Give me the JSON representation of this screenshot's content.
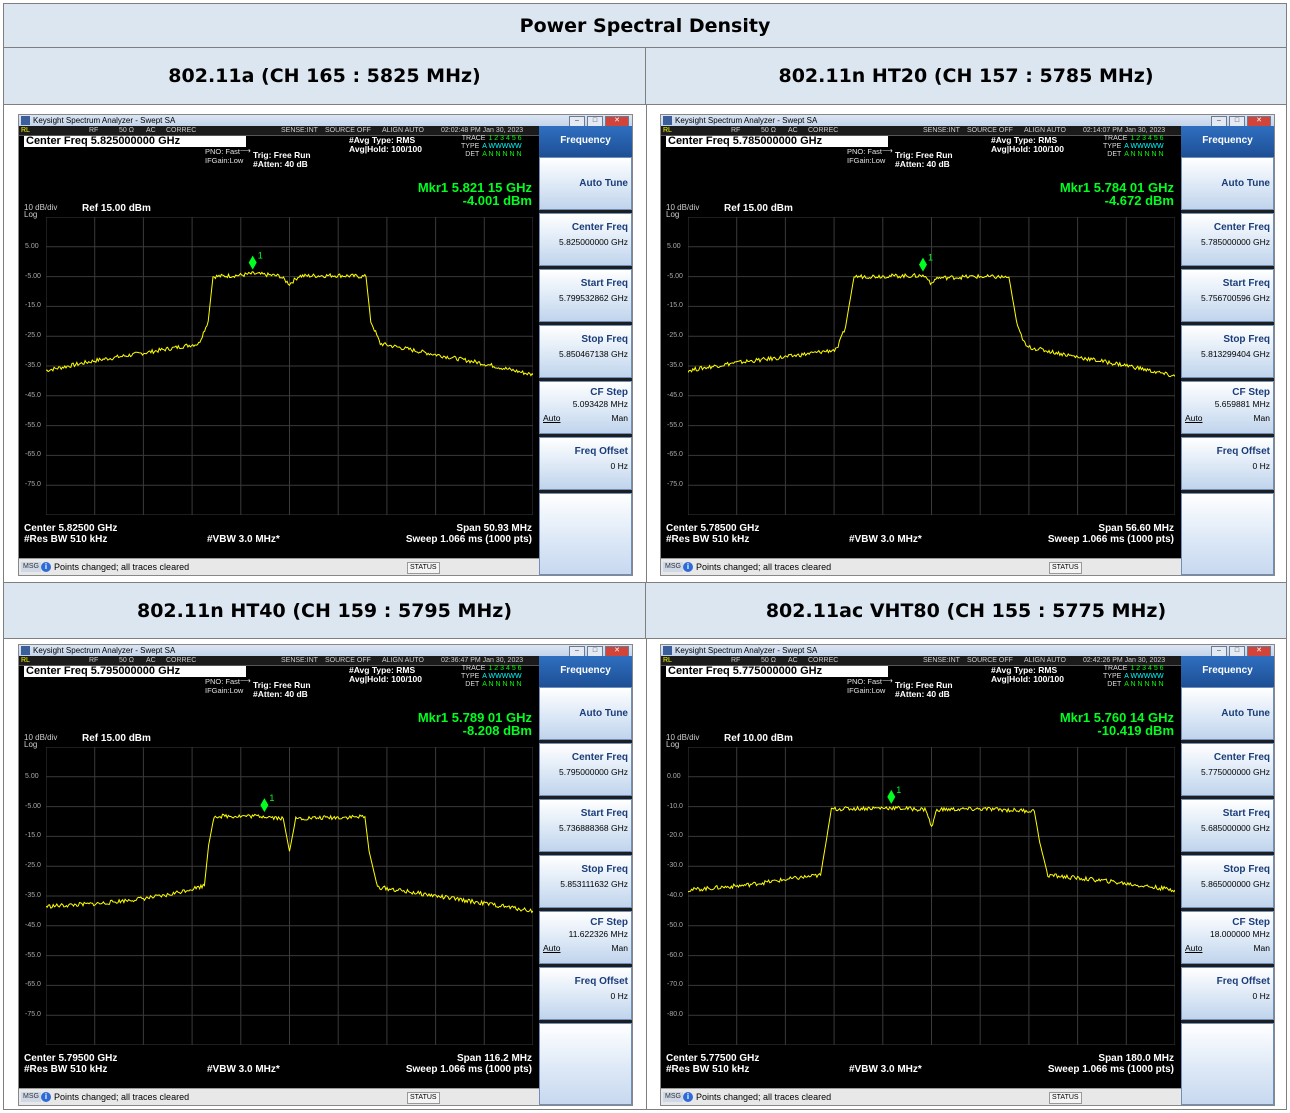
{
  "header": "Power Spectral Density",
  "panels": [
    {
      "heading": "802.11a (CH 165 : 5825 MHz)",
      "window_title": "Keysight Spectrum Analyzer - Swept SA",
      "status": {
        "rl": "RL",
        "rf": "RF",
        "ohm": "50 Ω",
        "ac": "AC",
        "correc": "CORREC",
        "sense": "SENSE:INT",
        "source": "SOURCE OFF",
        "align": "ALIGN AUTO",
        "time": "02:02:48 PM Jan 30, 2023"
      },
      "center_freq_line": "Center Freq 5.825000000 GHz",
      "pno": "PNO: Fast",
      "ifgain": "IFGain:Low",
      "trig": "Trig: Free Run",
      "atten": "#Atten: 40 dB",
      "avg_type": "#Avg Type: RMS",
      "avg_hold": "Avg|Hold: 100/100",
      "trace_labels": {
        "trace": "TRACE",
        "type": "TYPE",
        "det": "DET",
        "nums": "1 2 3 4 5 6",
        "type_val": "A WWWWW",
        "det_val": "A N N N N N"
      },
      "marker_line1": "Mkr1 5.821 15 GHz",
      "marker_line2": "-4.001 dBm",
      "scale": "10 dB/div",
      "log": "Log",
      "ref_level": "Ref 15.00 dBm",
      "yticks": [
        "5.00",
        "-5.00",
        "-15.0",
        "-25.0",
        "-35.0",
        "-45.0",
        "-55.0",
        "-65.0",
        "-75.0"
      ],
      "center": "Center 5.82500 GHz",
      "span": "Span 50.93 MHz",
      "rbw": "#Res BW 510 kHz",
      "vbw": "#VBW 3.0 MHz*",
      "sweep": "Sweep  1.066 ms (1000 pts)",
      "msg_tag": "MSG",
      "msg": "Points changed; all traces cleared",
      "status_label": "STATUS",
      "marker_label": "1",
      "menu": {
        "title": "Frequency",
        "auto_tune": "Auto Tune",
        "center_freq": "Center Freq",
        "center_freq_val": "5.825000000 GHz",
        "start_freq": "Start Freq",
        "start_freq_val": "5.799532862 GHz",
        "stop_freq": "Stop Freq",
        "stop_freq_val": "5.850467138 GHz",
        "cf_step": "CF Step",
        "cf_step_val": "5.093428 MHz",
        "auto": "Auto",
        "man": "Man",
        "freq_offset": "Freq Offset",
        "freq_offset_val": "0 Hz"
      }
    },
    {
      "heading": "802.11n HT20 (CH 157 : 5785 MHz)",
      "window_title": "Keysight Spectrum Analyzer - Swept SA",
      "status": {
        "rl": "RL",
        "rf": "RF",
        "ohm": "50 Ω",
        "ac": "AC",
        "correc": "CORREC",
        "sense": "SENSE:INT",
        "source": "SOURCE OFF",
        "align": "ALIGN AUTO",
        "time": "02:14:07 PM Jan 30, 2023"
      },
      "center_freq_line": "Center Freq 5.785000000 GHz",
      "pno": "PNO: Fast",
      "ifgain": "IFGain:Low",
      "trig": "Trig: Free Run",
      "atten": "#Atten: 40 dB",
      "avg_type": "#Avg Type: RMS",
      "avg_hold": "Avg|Hold: 100/100",
      "trace_labels": {
        "trace": "TRACE",
        "type": "TYPE",
        "det": "DET",
        "nums": "1 2 3 4 5 6",
        "type_val": "A WWWWW",
        "det_val": "A N N N N N"
      },
      "marker_line1": "Mkr1 5.784 01 GHz",
      "marker_line2": "-4.672 dBm",
      "scale": "10 dB/div",
      "log": "Log",
      "ref_level": "Ref 15.00 dBm",
      "yticks": [
        "5.00",
        "-5.00",
        "-15.0",
        "-25.0",
        "-35.0",
        "-45.0",
        "-55.0",
        "-65.0",
        "-75.0"
      ],
      "center": "Center 5.78500 GHz",
      "span": "Span 56.60 MHz",
      "rbw": "#Res BW 510 kHz",
      "vbw": "#VBW 3.0 MHz*",
      "sweep": "Sweep  1.066 ms (1000 pts)",
      "msg_tag": "MSG",
      "msg": "Points changed; all traces cleared",
      "status_label": "STATUS",
      "marker_label": "1",
      "menu": {
        "title": "Frequency",
        "auto_tune": "Auto Tune",
        "center_freq": "Center Freq",
        "center_freq_val": "5.785000000 GHz",
        "start_freq": "Start Freq",
        "start_freq_val": "5.756700596 GHz",
        "stop_freq": "Stop Freq",
        "stop_freq_val": "5.813299404 GHz",
        "cf_step": "CF Step",
        "cf_step_val": "5.659881 MHz",
        "auto": "Auto",
        "man": "Man",
        "freq_offset": "Freq Offset",
        "freq_offset_val": "0 Hz"
      }
    },
    {
      "heading": "802.11n HT40 (CH 159 : 5795 MHz)",
      "window_title": "Keysight Spectrum Analyzer - Swept SA",
      "status": {
        "rl": "RL",
        "rf": "RF",
        "ohm": "50 Ω",
        "ac": "AC",
        "correc": "CORREC",
        "sense": "SENSE:INT",
        "source": "SOURCE OFF",
        "align": "ALIGN AUTO",
        "time": "02:36:47 PM Jan 30, 2023"
      },
      "center_freq_line": "Center Freq 5.795000000 GHz",
      "pno": "PNO: Fast",
      "ifgain": "IFGain:Low",
      "trig": "Trig: Free Run",
      "atten": "#Atten: 40 dB",
      "avg_type": "#Avg Type: RMS",
      "avg_hold": "Avg|Hold: 100/100",
      "trace_labels": {
        "trace": "TRACE",
        "type": "TYPE",
        "det": "DET",
        "nums": "1 2 3 4 5 6",
        "type_val": "A WWWWW",
        "det_val": "A N N N N N"
      },
      "marker_line1": "Mkr1 5.789 01 GHz",
      "marker_line2": "-8.208 dBm",
      "scale": "10 dB/div",
      "log": "Log",
      "ref_level": "Ref 15.00 dBm",
      "yticks": [
        "5.00",
        "-5.00",
        "-15.0",
        "-25.0",
        "-35.0",
        "-45.0",
        "-55.0",
        "-65.0",
        "-75.0"
      ],
      "center": "Center 5.79500 GHz",
      "span": "Span 116.2 MHz",
      "rbw": "#Res BW 510 kHz",
      "vbw": "#VBW 3.0 MHz*",
      "sweep": "Sweep  1.066 ms (1000 pts)",
      "msg_tag": "MSG",
      "msg": "Points changed; all traces cleared",
      "status_label": "STATUS",
      "marker_label": "1",
      "menu": {
        "title": "Frequency",
        "auto_tune": "Auto Tune",
        "center_freq": "Center Freq",
        "center_freq_val": "5.795000000 GHz",
        "start_freq": "Start Freq",
        "start_freq_val": "5.736888368 GHz",
        "stop_freq": "Stop Freq",
        "stop_freq_val": "5.853111632 GHz",
        "cf_step": "CF Step",
        "cf_step_val": "11.622326 MHz",
        "auto": "Auto",
        "man": "Man",
        "freq_offset": "Freq Offset",
        "freq_offset_val": "0 Hz"
      }
    },
    {
      "heading": "802.11ac VHT80 (CH 155 : 5775 MHz)",
      "window_title": "Keysight Spectrum Analyzer - Swept SA",
      "status": {
        "rl": "RL",
        "rf": "RF",
        "ohm": "50 Ω",
        "ac": "AC",
        "correc": "CORREC",
        "sense": "SENSE:INT",
        "source": "SOURCE OFF",
        "align": "ALIGN AUTO",
        "time": "02:42:26 PM Jan 30, 2023"
      },
      "center_freq_line": "Center Freq 5.775000000 GHz",
      "pno": "PNO: Fast",
      "ifgain": "IFGain:Low",
      "trig": "Trig: Free Run",
      "atten": "#Atten: 40 dB",
      "avg_type": "#Avg Type: RMS",
      "avg_hold": "Avg|Hold: 100/100",
      "trace_labels": {
        "trace": "TRACE",
        "type": "TYPE",
        "det": "DET",
        "nums": "1 2 3 4 5 6",
        "type_val": "A WWWWW",
        "det_val": "A N N N N N"
      },
      "marker_line1": "Mkr1 5.760 14 GHz",
      "marker_line2": "-10.419 dBm",
      "scale": "10 dB/div",
      "log": "Log",
      "ref_level": "Ref 10.00 dBm",
      "yticks": [
        "0.00",
        "-10.0",
        "-20.0",
        "-30.0",
        "-40.0",
        "-50.0",
        "-60.0",
        "-70.0",
        "-80.0"
      ],
      "center": "Center 5.77500 GHz",
      "span": "Span 180.0 MHz",
      "rbw": "#Res BW 510 kHz",
      "vbw": "#VBW 3.0 MHz*",
      "sweep": "Sweep  1.066 ms (1000 pts)",
      "msg_tag": "MSG",
      "msg": "Points changed; all traces cleared",
      "status_label": "STATUS",
      "marker_label": "1",
      "menu": {
        "title": "Frequency",
        "auto_tune": "Auto Tune",
        "center_freq": "Center Freq",
        "center_freq_val": "5.775000000 GHz",
        "start_freq": "Start Freq",
        "start_freq_val": "5.685000000 GHz",
        "stop_freq": "Stop Freq",
        "stop_freq_val": "5.865000000 GHz",
        "cf_step": "CF Step",
        "cf_step_val": "18.000000 MHz",
        "auto": "Auto",
        "man": "Man",
        "freq_offset": "Freq Offset",
        "freq_offset_val": "0 Hz"
      }
    }
  ],
  "colors": {
    "trace": "#ffff00",
    "marker": "#00ff21",
    "grid": "#3a3a3a",
    "header_bg": "#dce6f1"
  },
  "chart_data": [
    {
      "type": "line",
      "title": "802.11a (CH 165 : 5825 MHz)",
      "x_unit": "GHz",
      "y_unit": "dBm",
      "ylim": [
        -85,
        15
      ],
      "xlim": [
        5.799532862,
        5.850467138
      ],
      "series": [
        {
          "x": [
            5.7995,
            5.805,
            5.81,
            5.8155,
            5.8165,
            5.817,
            5.82,
            5.8211,
            5.824,
            5.825,
            5.826,
            5.83,
            5.833,
            5.8335,
            5.8345,
            5.84,
            5.845,
            5.8505
          ],
          "values": [
            -36.5,
            -33.0,
            -30.5,
            -27.5,
            -20,
            -5.0,
            -4.5,
            -4.0,
            -4.8,
            -7.5,
            -4.8,
            -4.6,
            -5.0,
            -20,
            -27.5,
            -31,
            -34,
            -38
          ]
        }
      ],
      "marker": {
        "label": "1",
        "x": 5.82115,
        "y": -4.001
      }
    },
    {
      "type": "line",
      "title": "802.11n HT20 (CH 157 : 5785 MHz)",
      "x_unit": "GHz",
      "y_unit": "dBm",
      "ylim": [
        -85,
        15
      ],
      "xlim": [
        5.756700596,
        5.813299404
      ],
      "series": [
        {
          "x": [
            5.7567,
            5.762,
            5.768,
            5.774,
            5.775,
            5.776,
            5.78,
            5.784,
            5.7846,
            5.785,
            5.7855,
            5.79,
            5.794,
            5.795,
            5.796,
            5.802,
            5.808,
            5.8133
          ],
          "values": [
            -36.5,
            -34.0,
            -32.0,
            -29.5,
            -22,
            -5.0,
            -4.8,
            -4.7,
            -5.5,
            -7.8,
            -5.5,
            -5.0,
            -5.2,
            -22,
            -28.5,
            -32,
            -35,
            -38.5
          ]
        }
      ],
      "marker": {
        "label": "1",
        "x": 5.78401,
        "y": -4.672
      }
    },
    {
      "type": "line",
      "title": "802.11n HT40 (CH 159 : 5795 MHz)",
      "x_unit": "GHz",
      "y_unit": "dBm",
      "ylim": [
        -85,
        15
      ],
      "xlim": [
        5.736888368,
        5.853111632
      ],
      "series": [
        {
          "x": [
            5.7369,
            5.75,
            5.765,
            5.7747,
            5.7757,
            5.777,
            5.789,
            5.7935,
            5.795,
            5.7965,
            5.81,
            5.813,
            5.814,
            5.816,
            5.83,
            5.8531
          ],
          "values": [
            -38.5,
            -37.5,
            -35.0,
            -31.5,
            -18,
            -8.2,
            -8.2,
            -9.0,
            -20.0,
            -9.0,
            -8.5,
            -8.4,
            -20,
            -32,
            -35,
            -40
          ]
        }
      ],
      "marker": {
        "label": "1",
        "x": 5.78901,
        "y": -8.208
      }
    },
    {
      "type": "line",
      "title": "802.11ac VHT80 (CH 155 : 5775 MHz)",
      "x_unit": "GHz",
      "y_unit": "dBm",
      "ylim": [
        -90,
        10
      ],
      "xlim": [
        5.685,
        5.865
      ],
      "series": [
        {
          "x": [
            5.685,
            5.705,
            5.725,
            5.734,
            5.736,
            5.738,
            5.76,
            5.773,
            5.775,
            5.777,
            5.795,
            5.813,
            5.815,
            5.818,
            5.84,
            5.865
          ],
          "values": [
            -38.0,
            -36.5,
            -34.0,
            -33.0,
            -22,
            -10.8,
            -10.4,
            -11.0,
            -17.0,
            -11.0,
            -10.8,
            -11.5,
            -22,
            -33.0,
            -35.0,
            -38.0
          ]
        }
      ],
      "marker": {
        "label": "1",
        "x": 5.76014,
        "y": -10.419
      }
    }
  ]
}
